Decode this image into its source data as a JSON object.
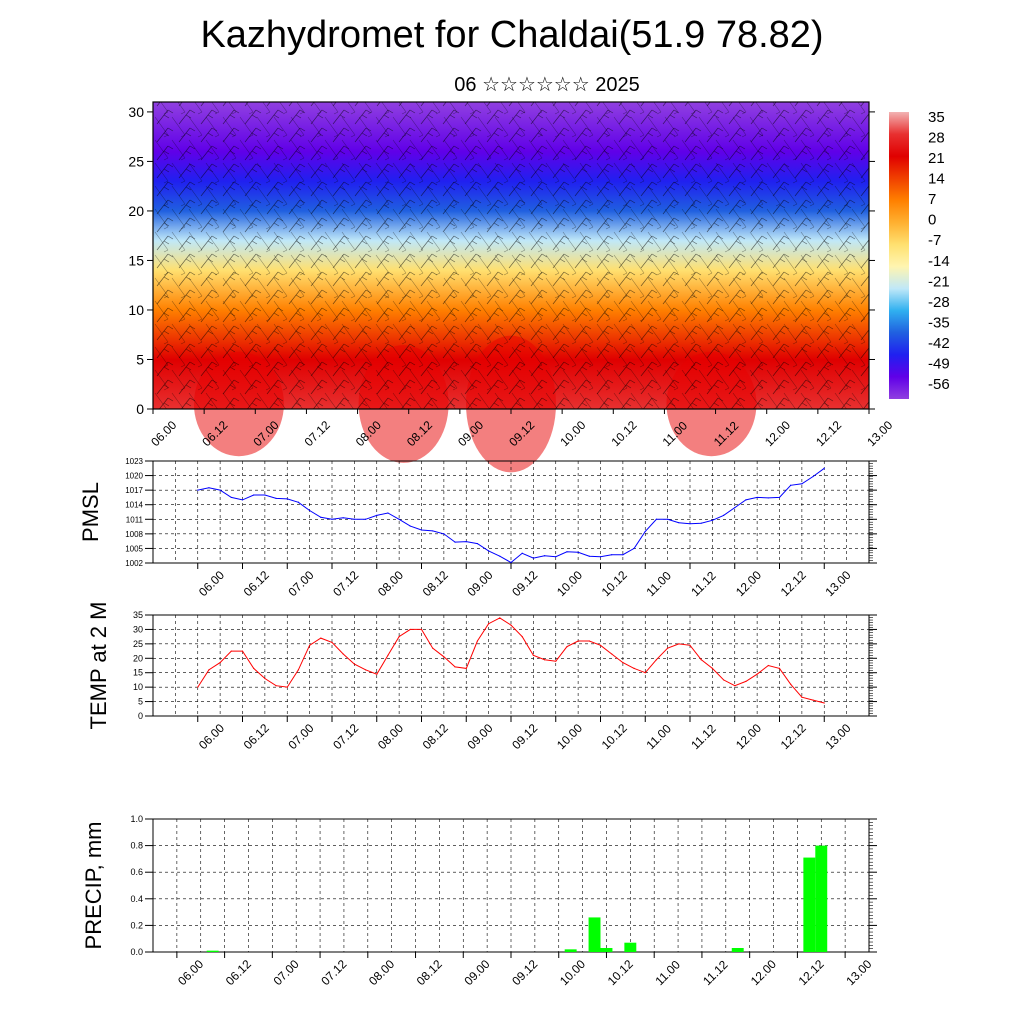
{
  "header": {
    "title": "Kazhydromet for Chaldai(51.9 78.82)",
    "subtitle": "06 ☆☆☆☆☆☆ 2025"
  },
  "time_labels": [
    "06.00",
    "06.12",
    "07.00",
    "07.12",
    "08.00",
    "08.12",
    "09.00",
    "09.12",
    "10.00",
    "10.12",
    "11.00",
    "11.12",
    "12.00",
    "12.12",
    "13.00"
  ],
  "chart_data": [
    {
      "type": "heatmap",
      "name": "cross-section",
      "y_ticks": [
        0,
        5,
        10,
        15,
        20,
        25,
        30
      ],
      "ylim": [
        0,
        31
      ],
      "colorbar_labels": [
        "35",
        "28",
        "21",
        "14",
        "7",
        "0",
        "-7",
        "-14",
        "-21",
        "-28",
        "-35",
        "-42",
        "-49",
        "-56"
      ],
      "colorbar_stops": [
        "#f2b3b3",
        "#e83030",
        "#e00000",
        "#f04000",
        "#ff8000",
        "#ffb030",
        "#ffe070",
        "#fff5b0",
        "#c0e8f8",
        "#30b0f0",
        "#2060e0",
        "#2020f0",
        "#6000e8",
        "#9040e0"
      ],
      "levels_temp": [
        {
          "z": 0,
          "t": 30
        },
        {
          "z": 5,
          "t": 24
        },
        {
          "z": 10,
          "t": 8
        },
        {
          "z": 14,
          "t": -7
        },
        {
          "z": 17,
          "t": -20
        },
        {
          "z": 20,
          "t": -32
        },
        {
          "z": 23,
          "t": -45
        },
        {
          "z": 26,
          "t": -52
        },
        {
          "z": 31,
          "t": -56
        }
      ]
    },
    {
      "type": "line",
      "ylabel": "PMSL",
      "y_ticks": [
        "1002",
        "1005",
        "1008",
        "1011",
        "1014",
        "1017",
        "1020",
        "1023"
      ],
      "ylim": [
        1002,
        1023
      ],
      "color": "#0000ff",
      "x": [
        0,
        3,
        6,
        9,
        12,
        15,
        18,
        21,
        24,
        27,
        30,
        33,
        36,
        39,
        42,
        45,
        48,
        51,
        54,
        57,
        60,
        63,
        66,
        69,
        72,
        75,
        78,
        81,
        84,
        87,
        90,
        93,
        96,
        99,
        102,
        105,
        108,
        111,
        114,
        117,
        120,
        123,
        126,
        129,
        132,
        135,
        138,
        141,
        144,
        147,
        150,
        153,
        156,
        159,
        162,
        165,
        168
      ],
      "values": [
        1017,
        1017.5,
        1017,
        1015.5,
        1015,
        1016,
        1016,
        1015.3,
        1015.2,
        1014.5,
        1012.8,
        1011.4,
        1011,
        1011.3,
        1011,
        1011,
        1011.8,
        1012.3,
        1011,
        1009.6,
        1008.8,
        1008.6,
        1008,
        1006.3,
        1006.4,
        1006,
        1004.5,
        1003.4,
        1002.1,
        1004,
        1003,
        1003.5,
        1003.3,
        1004.3,
        1004.2,
        1003.4,
        1003.3,
        1003.7,
        1003.7,
        1005,
        1008.5,
        1011,
        1011,
        1010.3,
        1010.1,
        1010.2,
        1010.8,
        1011.8,
        1013.4,
        1015,
        1015.5,
        1015.4,
        1015.5,
        1018,
        1018.3,
        1019.8,
        1021.5
      ]
    },
    {
      "type": "line",
      "ylabel": "TEMP at 2 M",
      "y_ticks": [
        "0",
        "5",
        "10",
        "15",
        "20",
        "25",
        "30",
        "35"
      ],
      "ylim": [
        0,
        35
      ],
      "color": "#ff0000",
      "x": [
        0,
        3,
        6,
        9,
        12,
        15,
        18,
        21,
        24,
        27,
        30,
        33,
        36,
        39,
        42,
        45,
        48,
        51,
        54,
        57,
        60,
        63,
        66,
        69,
        72,
        75,
        78,
        81,
        84,
        87,
        90,
        93,
        96,
        99,
        102,
        105,
        108,
        111,
        114,
        117,
        120,
        123,
        126,
        129,
        132,
        135,
        138,
        141,
        144,
        147,
        150,
        153,
        156,
        159,
        162,
        165,
        168
      ],
      "values": [
        10,
        16,
        18.5,
        22.5,
        22.5,
        16.5,
        13,
        10.5,
        10,
        16,
        24.5,
        27,
        25.5,
        21.5,
        18,
        16,
        14.5,
        21,
        27.5,
        30,
        30,
        23.5,
        20.5,
        17,
        16.5,
        26,
        32,
        34,
        31.5,
        27.5,
        21,
        19.5,
        19,
        24,
        26,
        26,
        24.5,
        21.5,
        18.5,
        16.5,
        15,
        19.5,
        23.5,
        25,
        24.5,
        19.5,
        16.5,
        12.5,
        10.5,
        12,
        14.5,
        17.5,
        16.5,
        11,
        6.5,
        5.5,
        4.5
      ]
    },
    {
      "type": "bar",
      "ylabel": "PRECIP, mm",
      "y_ticks": [
        "0.0",
        "0.2",
        "0.4",
        "0.6",
        "0.8",
        "1.0"
      ],
      "ylim": [
        0,
        1
      ],
      "color": "#00ff00",
      "x": [
        9,
        99,
        105,
        108,
        114,
        141,
        159,
        162
      ],
      "values": [
        0.01,
        0.02,
        0.26,
        0.03,
        0.07,
        0.03,
        0.71,
        0.8
      ]
    }
  ]
}
